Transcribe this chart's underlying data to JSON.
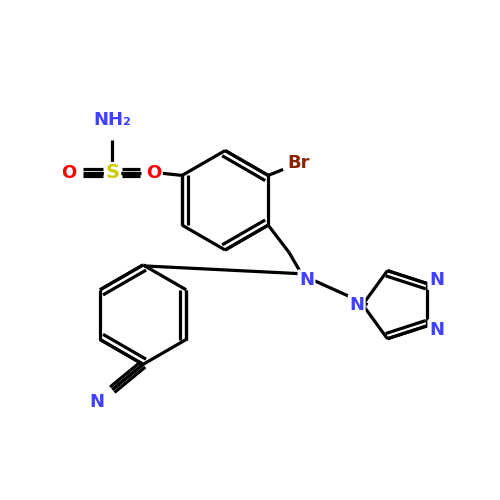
{
  "background_color": "#ffffff",
  "bond_color": "#000000",
  "atom_colors": {
    "N": "#4040ff",
    "O": "#ff0000",
    "S": "#cccc00",
    "Br": "#8b2200",
    "CN_label": "#4040ff"
  },
  "figsize": [
    5.0,
    5.0
  ],
  "dpi": 100,
  "lw": 2.3,
  "fontsize": 13
}
